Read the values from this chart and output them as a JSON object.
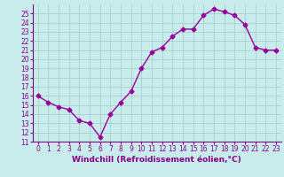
{
  "x": [
    0,
    1,
    2,
    3,
    4,
    5,
    6,
    7,
    8,
    9,
    10,
    11,
    12,
    13,
    14,
    15,
    16,
    17,
    18,
    19,
    20,
    21,
    22,
    23
  ],
  "y": [
    16,
    15.3,
    14.8,
    14.5,
    13.3,
    13.0,
    11.5,
    14.0,
    15.3,
    16.5,
    19.0,
    20.8,
    21.3,
    22.5,
    23.3,
    23.3,
    24.8,
    25.5,
    25.2,
    24.8,
    23.8,
    21.3,
    21.0,
    21.0
  ],
  "line_color": "#990099",
  "marker": "D",
  "markersize": 2.5,
  "linewidth": 1.0,
  "xlabel": "Windchill (Refroidissement éolien,°C)",
  "xlabel_fontsize": 6.5,
  "xlim": [
    -0.5,
    23.5
  ],
  "ylim": [
    11,
    26
  ],
  "yticks": [
    11,
    12,
    13,
    14,
    15,
    16,
    17,
    18,
    19,
    20,
    21,
    22,
    23,
    24,
    25
  ],
  "xticks": [
    0,
    1,
    2,
    3,
    4,
    5,
    6,
    7,
    8,
    9,
    10,
    11,
    12,
    13,
    14,
    15,
    16,
    17,
    18,
    19,
    20,
    21,
    22,
    23
  ],
  "bg_color": "#c8ecec",
  "grid_color": "#aacccc",
  "tick_color": "#880088",
  "label_color": "#880088",
  "tick_fontsize": 5.5,
  "spine_color": "#880088"
}
